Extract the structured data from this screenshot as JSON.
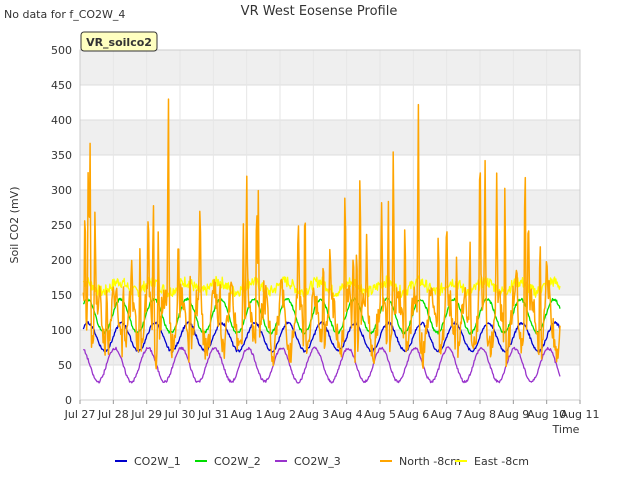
{
  "chart_data": {
    "type": "line",
    "title": "VR West Eosense Profile",
    "corner_note": "No data for f_CO2W_4",
    "badge": "VR_soilco2",
    "xlabel": "Time",
    "ylabel": "Soil CO2 (mV)",
    "xlim": [
      0,
      15
    ],
    "ylim": [
      0,
      500
    ],
    "x_tick_values": [
      0,
      1,
      2,
      3,
      4,
      5,
      6,
      7,
      8,
      9,
      10,
      11,
      12,
      13,
      14,
      15
    ],
    "x_tick_labels": [
      "Jul 27",
      "Jul 28",
      "Jul 29",
      "Jul 30",
      "Jul 31",
      "Aug 1",
      "Aug 2",
      "Aug 3",
      "Aug 4",
      "Aug 5",
      "Aug 6",
      "Aug 7",
      "Aug 8",
      "Aug 9",
      "Aug 10",
      "Aug 11"
    ],
    "y_ticks": [
      0,
      50,
      100,
      150,
      200,
      250,
      300,
      350,
      400,
      450,
      500
    ],
    "grid": true,
    "legend_position": "bottom",
    "data_x_range": [
      0.1,
      14.4
    ],
    "series": [
      {
        "name": "CO2W_1",
        "color": "#0000cc",
        "kind": "sinusoid",
        "base": 90,
        "amp": 20,
        "phase": 0.0
      },
      {
        "name": "CO2W_2",
        "color": "#00dd00",
        "kind": "sinusoid",
        "base": 120,
        "amp": 24,
        "phase": 0.2
      },
      {
        "name": "CO2W_3",
        "color": "#9933cc",
        "kind": "sinusoid",
        "base": 50,
        "amp": 24,
        "phase": 1.3
      },
      {
        "name": "North -8cm",
        "color": "#ffa500",
        "kind": "spiky",
        "base": 110,
        "amp": 50,
        "peaks": [
          [
            0.15,
            300
          ],
          [
            0.25,
            390
          ],
          [
            0.3,
            410
          ],
          [
            0.45,
            280
          ],
          [
            0.8,
            175
          ],
          [
            1.3,
            175
          ],
          [
            1.55,
            200
          ],
          [
            1.8,
            235
          ],
          [
            2.05,
            290
          ],
          [
            2.2,
            300
          ],
          [
            2.35,
            255
          ],
          [
            2.65,
            465
          ],
          [
            2.95,
            255
          ],
          [
            3.3,
            200
          ],
          [
            3.6,
            300
          ],
          [
            4.2,
            175
          ],
          [
            4.9,
            255
          ],
          [
            5.0,
            335
          ],
          [
            5.3,
            330
          ],
          [
            5.35,
            300
          ],
          [
            6.55,
            270
          ],
          [
            6.75,
            325
          ],
          [
            7.3,
            230
          ],
          [
            7.5,
            225
          ],
          [
            7.95,
            320
          ],
          [
            8.2,
            235
          ],
          [
            8.3,
            245
          ],
          [
            8.4,
            355
          ],
          [
            8.6,
            240
          ],
          [
            9.05,
            290
          ],
          [
            9.25,
            295
          ],
          [
            9.4,
            395
          ],
          [
            9.75,
            285
          ],
          [
            10.15,
            430
          ],
          [
            10.75,
            270
          ],
          [
            11.0,
            275
          ],
          [
            11.3,
            230
          ],
          [
            11.7,
            240
          ],
          [
            12.0,
            395
          ],
          [
            12.15,
            360
          ],
          [
            12.5,
            325
          ],
          [
            12.75,
            335
          ],
          [
            13.1,
            195
          ],
          [
            13.35,
            390
          ],
          [
            13.45,
            290
          ],
          [
            13.8,
            260
          ],
          [
            14.0,
            215
          ]
        ]
      },
      {
        "name": "East -8cm",
        "color": "#ffff00",
        "kind": "noisy",
        "base": 162,
        "amp": 12,
        "phase": 0.5
      }
    ]
  }
}
